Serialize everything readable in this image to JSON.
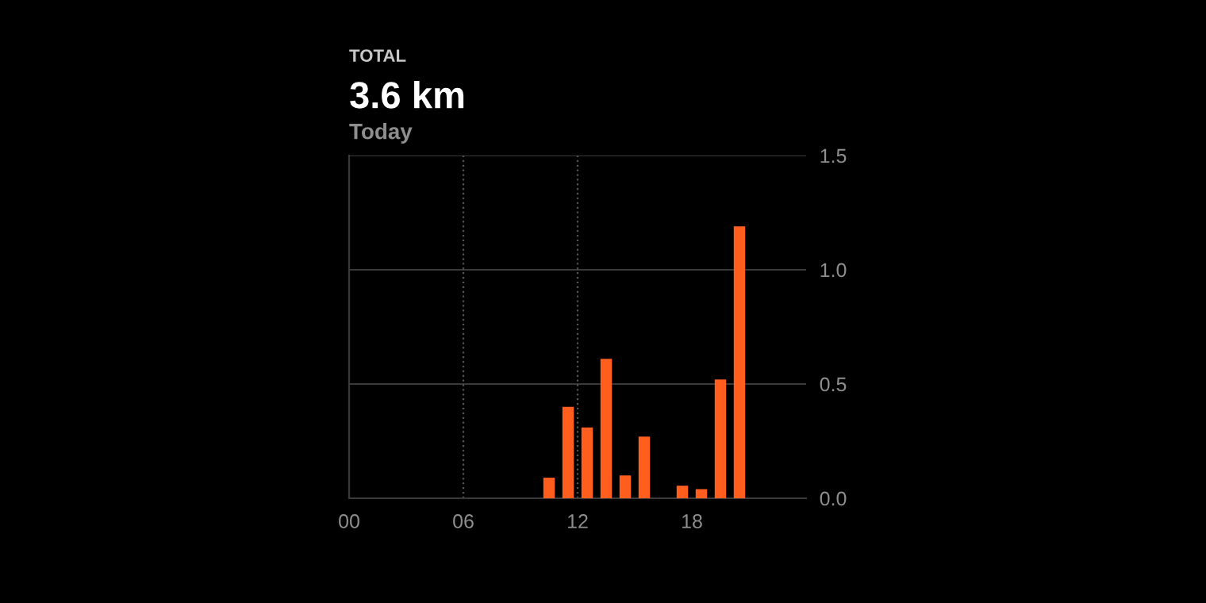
{
  "chart_data": {
    "type": "bar",
    "title": "TOTAL",
    "subtitle": "3.6 km",
    "annotations": [
      "Today"
    ],
    "x": [
      10.5,
      11.5,
      12.5,
      13.5,
      14.5,
      15.5,
      17.5,
      18.5,
      19.5,
      20.5
    ],
    "values": [
      0.09,
      0.4,
      0.31,
      0.61,
      0.1,
      0.27,
      0.055,
      0.04,
      0.52,
      1.19
    ],
    "color": "#ff5e1f",
    "xlim": [
      0,
      24
    ],
    "xticks": [
      {
        "value": 0,
        "label": "00"
      },
      {
        "value": 6,
        "label": "06"
      },
      {
        "value": 12,
        "label": "12"
      },
      {
        "value": 18,
        "label": "18"
      }
    ],
    "ylim": [
      0,
      1.5
    ],
    "yticks": [
      {
        "value": 0,
        "label": "0.0"
      },
      {
        "value": 0.5,
        "label": "0.5"
      },
      {
        "value": 1.0,
        "label": "1.0"
      },
      {
        "value": 1.5,
        "label": "1.5"
      }
    ],
    "grid": "y",
    "ref_lines": [
      {
        "axis": "x",
        "value": 6,
        "line_style": "dotted",
        "color": "#555555"
      },
      {
        "axis": "x",
        "value": 12,
        "line_style": "dotted",
        "color": "#555555"
      }
    ]
  }
}
